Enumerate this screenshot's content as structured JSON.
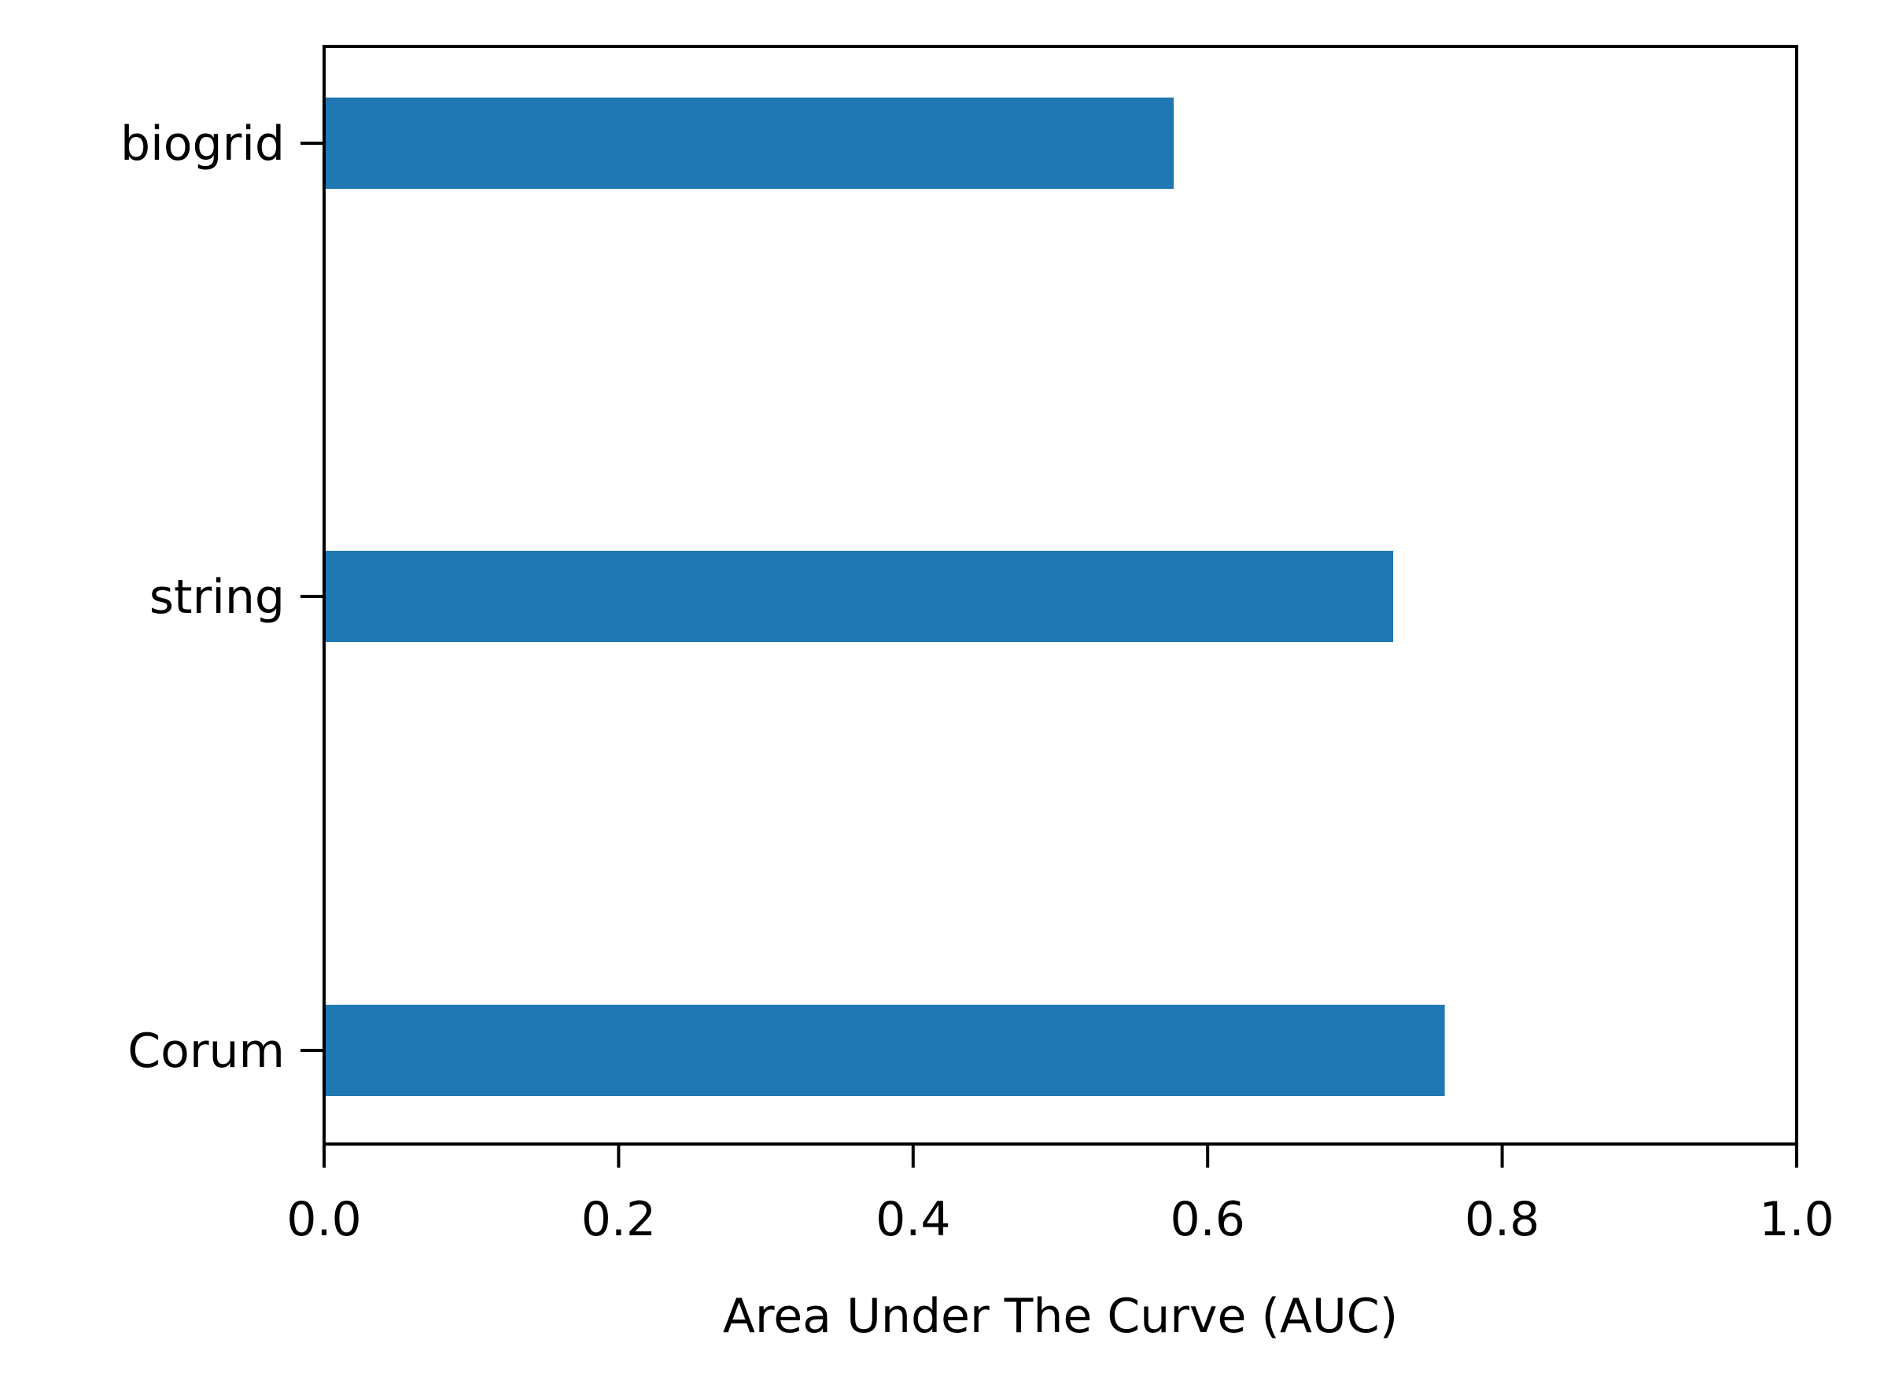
{
  "chart_data": {
    "type": "bar",
    "orientation": "horizontal",
    "categories": [
      "biogrid",
      "string",
      "Corum"
    ],
    "values": [
      0.577,
      0.726,
      0.761
    ],
    "xlabel": "Area Under The Curve (AUC)",
    "xlim": [
      0.0,
      1.0
    ],
    "xticks": [
      "0.0",
      "0.2",
      "0.4",
      "0.6",
      "0.8",
      "1.0"
    ],
    "grid": false,
    "legend": "none",
    "colors": {
      "bar": "#1f77b4",
      "axis": "#000000"
    }
  }
}
